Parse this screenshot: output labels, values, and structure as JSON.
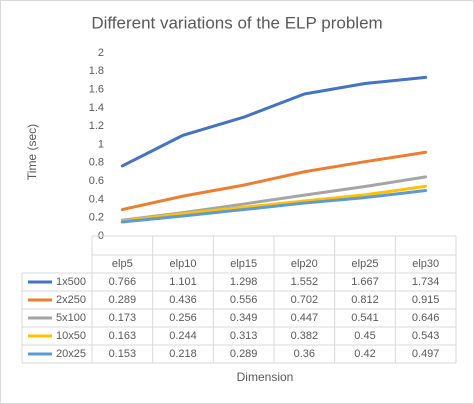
{
  "chart_data": {
    "type": "line",
    "title": "Different variations of the ELP problem",
    "x_label": "Dimension",
    "y_label": "Time (sec)",
    "categories": [
      "elp5",
      "elp10",
      "elp15",
      "elp20",
      "elp25",
      "elp30"
    ],
    "series": [
      {
        "name": "1x500",
        "color": "#4472c4",
        "values": [
          0.766,
          1.101,
          1.298,
          1.552,
          1.667,
          1.734
        ]
      },
      {
        "name": "2x250",
        "color": "#ed7d31",
        "values": [
          0.289,
          0.436,
          0.556,
          0.702,
          0.812,
          0.915
        ]
      },
      {
        "name": "5x100",
        "color": "#a5a5a5",
        "values": [
          0.173,
          0.256,
          0.349,
          0.447,
          0.541,
          0.646
        ]
      },
      {
        "name": "10x50",
        "color": "#ffc000",
        "values": [
          0.163,
          0.244,
          0.313,
          0.382,
          0.45,
          0.543
        ]
      },
      {
        "name": "20x25",
        "color": "#5b9bd5",
        "values": [
          0.153,
          0.218,
          0.289,
          0.36,
          0.42,
          0.497
        ]
      }
    ],
    "ylim": [
      0,
      2
    ],
    "yticks": [
      0,
      0.2,
      0.4,
      0.6,
      0.8,
      1,
      1.2,
      1.4,
      1.6,
      1.8,
      2
    ],
    "grid": false
  }
}
